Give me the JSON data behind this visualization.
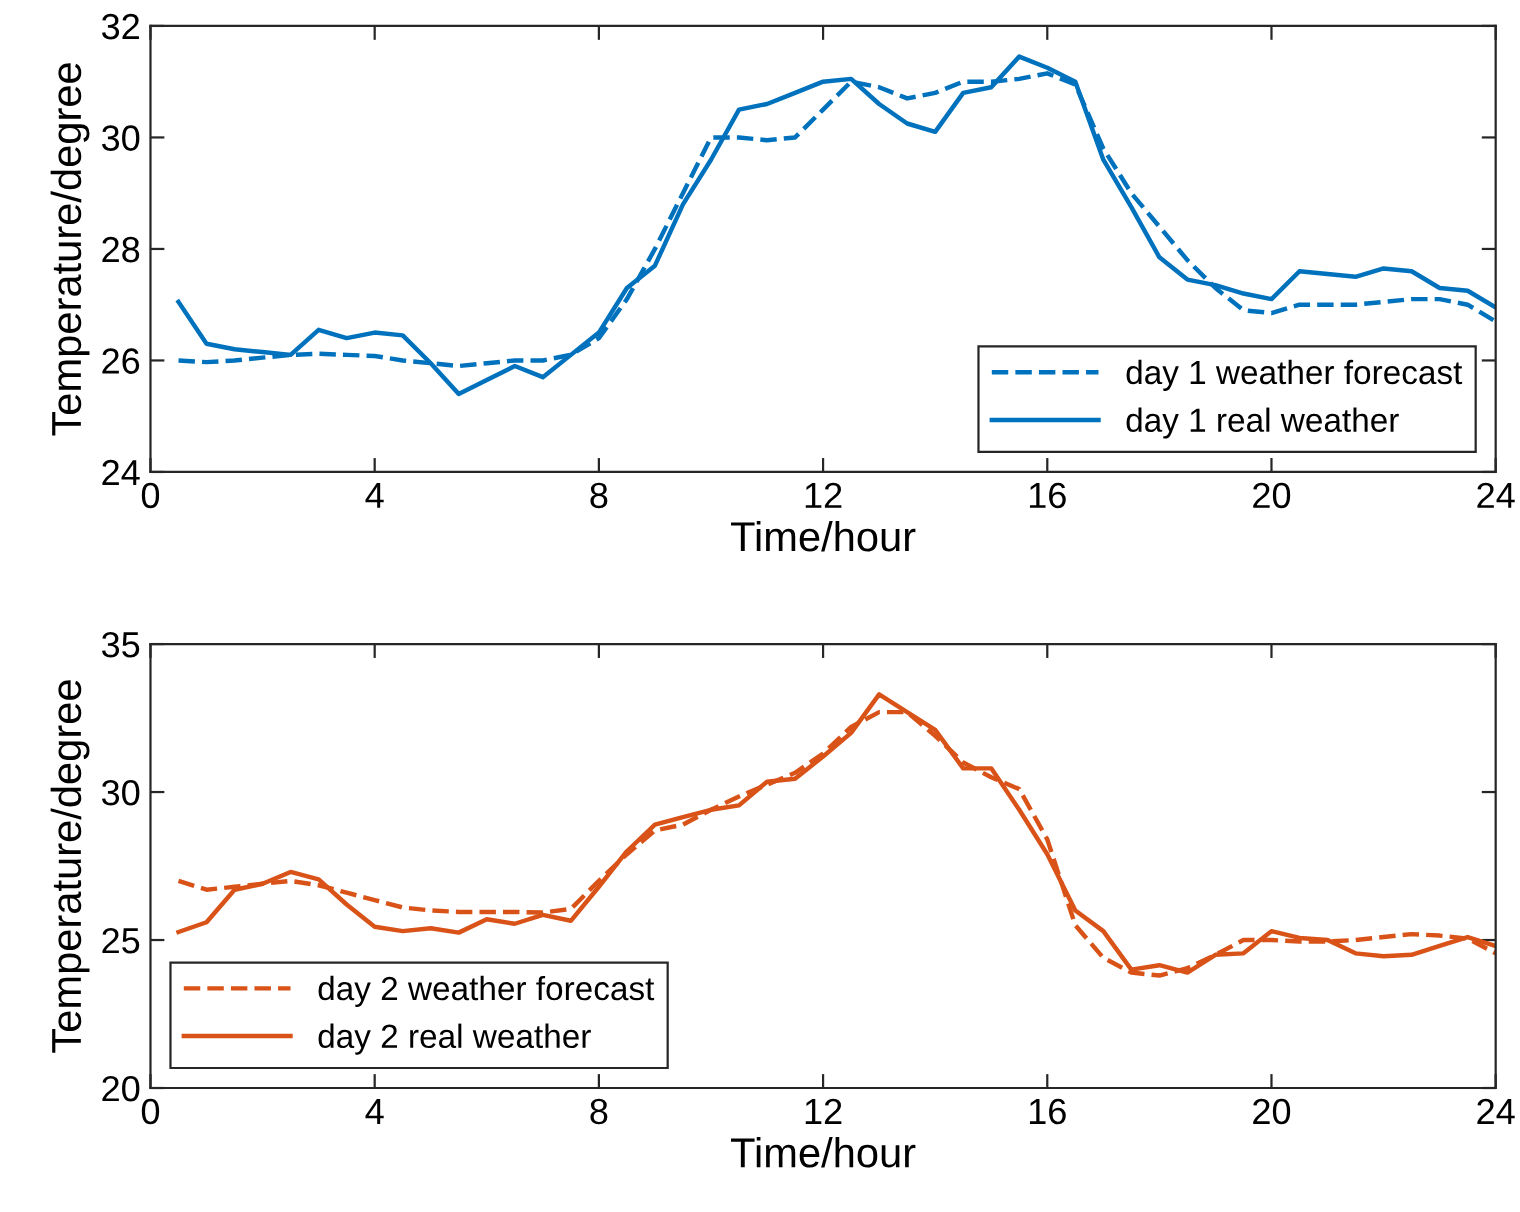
{
  "chart_data": [
    {
      "type": "line",
      "xlabel": "Time/hour",
      "ylabel": "Temperature/degree",
      "x": [
        0.5,
        1,
        1.5,
        2,
        2.5,
        3,
        3.5,
        4,
        4.5,
        5,
        5.5,
        6,
        6.5,
        7,
        7.5,
        8,
        8.5,
        9,
        9.5,
        10,
        10.5,
        11,
        11.5,
        12,
        12.5,
        13,
        13.5,
        14,
        14.5,
        15,
        15.5,
        16,
        16.5,
        17,
        17.5,
        18,
        18.5,
        19,
        19.5,
        20,
        20.5,
        21,
        21.5,
        22,
        22.5,
        23,
        23.5,
        24
      ],
      "series": [
        {
          "name": "day 1 weather forecast",
          "color": "#0072bd",
          "line_style": "dashed",
          "values": [
            26.0,
            25.97,
            26.0,
            26.05,
            26.1,
            26.12,
            26.1,
            26.08,
            26.0,
            25.95,
            25.9,
            25.95,
            26.0,
            26.0,
            26.1,
            26.4,
            27.1,
            28.0,
            29.0,
            30.0,
            30.0,
            29.95,
            30.0,
            30.5,
            31.0,
            30.9,
            30.7,
            30.8,
            31.0,
            31.0,
            31.05,
            31.15,
            30.95,
            29.8,
            29.0,
            28.4,
            27.8,
            27.3,
            26.9,
            26.85,
            27.0,
            27.0,
            27.0,
            27.05,
            27.1,
            27.1,
            27.0,
            26.7
          ]
        },
        {
          "name": "day 1 real weather",
          "color": "#0072bd",
          "line_style": "solid",
          "values": [
            27.05,
            26.3,
            26.2,
            26.15,
            26.1,
            26.55,
            26.4,
            26.5,
            26.45,
            25.95,
            25.4,
            25.65,
            25.9,
            25.7,
            26.1,
            26.5,
            27.3,
            27.7,
            28.8,
            29.6,
            30.5,
            30.6,
            30.8,
            31.0,
            31.05,
            30.6,
            30.25,
            30.1,
            30.8,
            30.9,
            31.45,
            31.25,
            31.0,
            29.6,
            28.75,
            27.85,
            27.45,
            27.35,
            27.2,
            27.1,
            27.6,
            27.55,
            27.5,
            27.65,
            27.6,
            27.3,
            27.25,
            26.95
          ]
        }
      ],
      "xlim": [
        0,
        24
      ],
      "xticks": [
        0,
        4,
        8,
        12,
        16,
        20,
        24
      ],
      "ylim": [
        24,
        32
      ],
      "yticks": [
        24,
        26,
        28,
        30,
        32
      ],
      "grid": false,
      "legend": "bottom right"
    },
    {
      "type": "line",
      "xlabel": "Time/hour",
      "ylabel": "Temperature/degree",
      "x": [
        0.5,
        1,
        1.5,
        2,
        2.5,
        3,
        3.5,
        4,
        4.5,
        5,
        5.5,
        6,
        6.5,
        7,
        7.5,
        8,
        8.5,
        9,
        9.5,
        10,
        10.5,
        11,
        11.5,
        12,
        12.5,
        13,
        13.5,
        14,
        14.5,
        15,
        15.5,
        16,
        16.5,
        17,
        17.5,
        18,
        18.5,
        19,
        19.5,
        20,
        20.5,
        21,
        21.5,
        22,
        22.5,
        23,
        23.5,
        24
      ],
      "series": [
        {
          "name": "day 2 weather forecast",
          "color": "#d95319",
          "line_style": "dashed",
          "values": [
            27.0,
            26.7,
            26.8,
            26.9,
            27.0,
            26.85,
            26.6,
            26.35,
            26.1,
            26.0,
            25.95,
            25.95,
            25.95,
            25.93,
            26.05,
            27.0,
            27.9,
            28.7,
            28.9,
            29.4,
            29.85,
            30.25,
            30.65,
            31.3,
            32.2,
            32.7,
            32.7,
            31.9,
            31.0,
            30.5,
            30.1,
            28.4,
            25.5,
            24.4,
            23.9,
            23.8,
            24.05,
            24.5,
            25.0,
            25.0,
            24.95,
            24.95,
            25.0,
            25.1,
            25.2,
            25.15,
            25.05,
            24.55
          ]
        },
        {
          "name": "day 2 real weather",
          "color": "#d95319",
          "line_style": "solid",
          "values": [
            25.27,
            25.6,
            26.7,
            26.9,
            27.3,
            27.05,
            26.2,
            25.45,
            25.3,
            25.4,
            25.25,
            25.7,
            25.55,
            25.85,
            25.65,
            26.8,
            28.0,
            28.9,
            29.15,
            29.4,
            29.55,
            30.35,
            30.45,
            31.2,
            32.0,
            33.3,
            32.7,
            32.1,
            30.8,
            30.8,
            29.4,
            27.9,
            26.0,
            25.3,
            24.0,
            24.15,
            23.9,
            24.5,
            24.55,
            25.3,
            25.07,
            25.0,
            24.55,
            24.45,
            24.5,
            24.8,
            25.1,
            24.8
          ]
        }
      ],
      "xlim": [
        0,
        24
      ],
      "xticks": [
        0,
        4,
        8,
        12,
        16,
        20,
        24
      ],
      "ylim": [
        20,
        35
      ],
      "yticks": [
        20,
        25,
        30,
        35
      ],
      "grid": false,
      "legend": "bottom left"
    }
  ]
}
